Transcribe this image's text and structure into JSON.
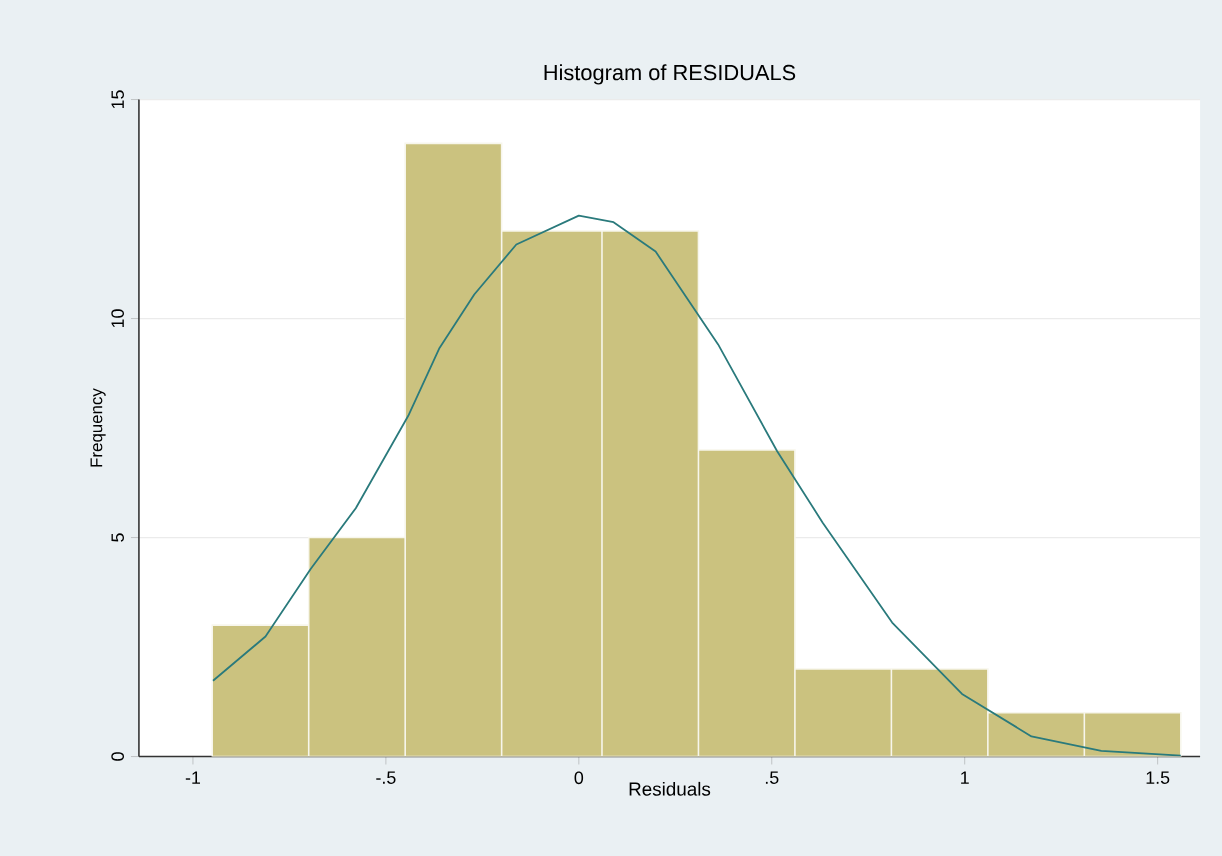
{
  "chart_data": {
    "type": "histogram",
    "title": "Histogram of RESIDUALS",
    "xlabel": "Residuals",
    "ylabel": "Frequency",
    "series": [
      {
        "color": "#cbc27f",
        "bins": [
          -0.95,
          -0.7,
          -0.45,
          -0.2,
          0.06,
          0.31,
          0.56,
          0.81,
          1.06,
          1.31,
          1.56
        ],
        "values": [
          3,
          5,
          14,
          12,
          12,
          7,
          2,
          2,
          1,
          1
        ]
      },
      {
        "type": "line",
        "color": "#2a7a7c",
        "x": [
          -0.948,
          -0.812,
          -0.695,
          -0.578,
          -0.442,
          -0.361,
          -0.271,
          -0.162,
          0,
          0.09,
          0.199,
          0.361,
          0.514,
          0.632,
          0.812,
          0.993,
          1.173,
          1.354,
          1.56
        ],
        "values": [
          1.73,
          2.74,
          4.28,
          5.67,
          7.78,
          9.33,
          10.55,
          11.69,
          12.35,
          12.2,
          11.53,
          9.41,
          6.97,
          5.34,
          3.06,
          1.43,
          0.46,
          0.13,
          0.02
        ]
      }
    ],
    "xlim": [
      -1.14,
      1.61
    ],
    "ylim": [
      0,
      15
    ],
    "xticks": [
      -1,
      {
        "value": -0.5,
        "label": "-.5"
      },
      0,
      {
        "value": 0.5,
        "label": ".5"
      },
      1,
      1.5
    ],
    "yticks": [
      0,
      5,
      10,
      15
    ],
    "grid": "y"
  }
}
